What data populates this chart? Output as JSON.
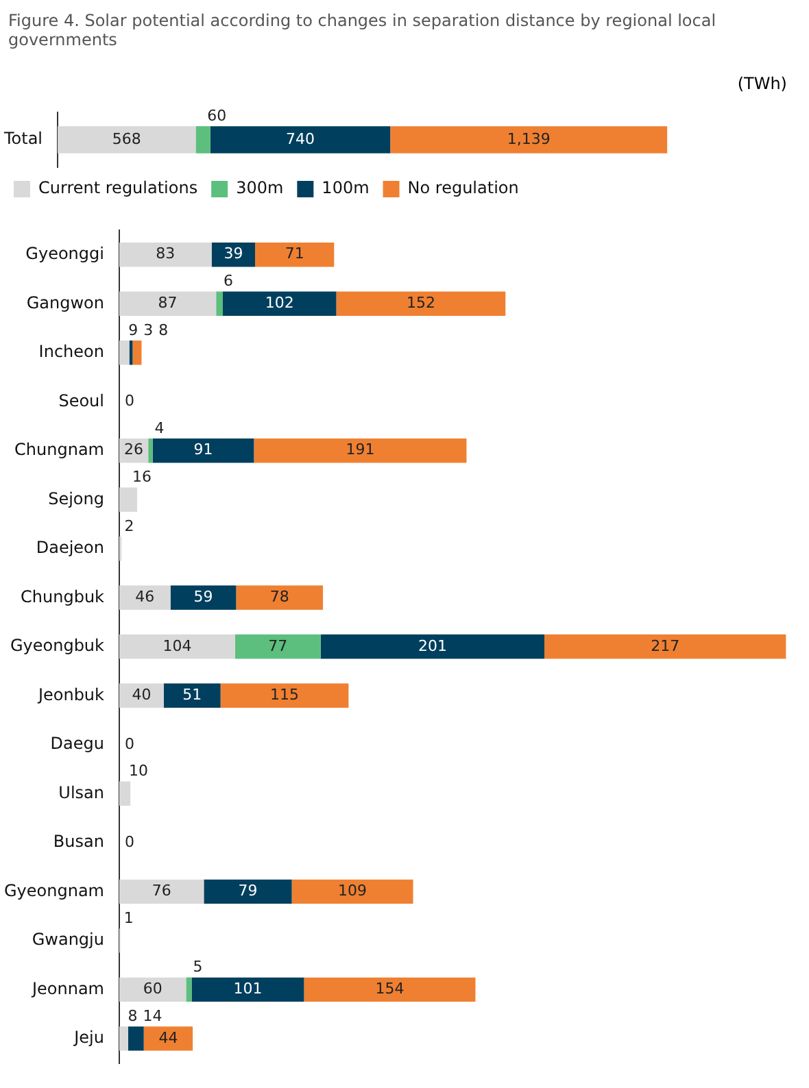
{
  "chart_data": [
    {
      "type": "bar",
      "orientation": "horizontal",
      "stacked": true,
      "title": "Figure 4. Solar potential according to changes in separation distance by regional local governments",
      "annotations": [
        "(TWh)"
      ],
      "categories": [
        "Total"
      ],
      "tick_labels": "y",
      "legend": "bottom",
      "data_labels": true,
      "series": [
        {
          "name": "Current regulations",
          "color": "#d9d9d9",
          "values": [
            568
          ]
        },
        {
          "name": "300m",
          "color": "#5cbf7d",
          "values": [
            60
          ]
        },
        {
          "name": "100m",
          "color": "#013f5e",
          "values": [
            740
          ]
        },
        {
          "name": "No regulation",
          "color": "#ef8031",
          "values": [
            1139
          ],
          "value_labels": [
            "1,139"
          ]
        }
      ]
    },
    {
      "type": "bar",
      "orientation": "horizontal",
      "stacked": true,
      "categories": [
        "Gyeonggi",
        "Gangwon",
        "Incheon",
        "Seoul",
        "Chungnam",
        "Sejong",
        "Daejeon",
        "Chungbuk",
        "Gyeongbuk",
        "Jeonbuk",
        "Daegu",
        "Ulsan",
        "Busan",
        "Gyeongnam",
        "Gwangju",
        "Jeonnam",
        "Jeju"
      ],
      "tick_labels": "y",
      "data_labels": true,
      "series": [
        {
          "color": "#d9d9d9",
          "values": [
            83,
            87,
            9,
            0,
            26,
            16,
            2,
            46,
            104,
            40,
            0,
            10,
            0,
            76,
            1,
            60,
            8
          ]
        },
        {
          "color": "#5cbf7d",
          "values": [
            null,
            6,
            null,
            null,
            4,
            null,
            null,
            null,
            77,
            null,
            null,
            null,
            null,
            null,
            null,
            5,
            null
          ]
        },
        {
          "color": "#013f5e",
          "values": [
            39,
            102,
            3,
            null,
            91,
            null,
            null,
            59,
            201,
            51,
            null,
            null,
            null,
            79,
            null,
            101,
            14
          ]
        },
        {
          "color": "#ef8031",
          "values": [
            71,
            152,
            8,
            null,
            191,
            null,
            null,
            78,
            217,
            115,
            null,
            null,
            null,
            109,
            null,
            154,
            44
          ]
        }
      ]
    }
  ]
}
